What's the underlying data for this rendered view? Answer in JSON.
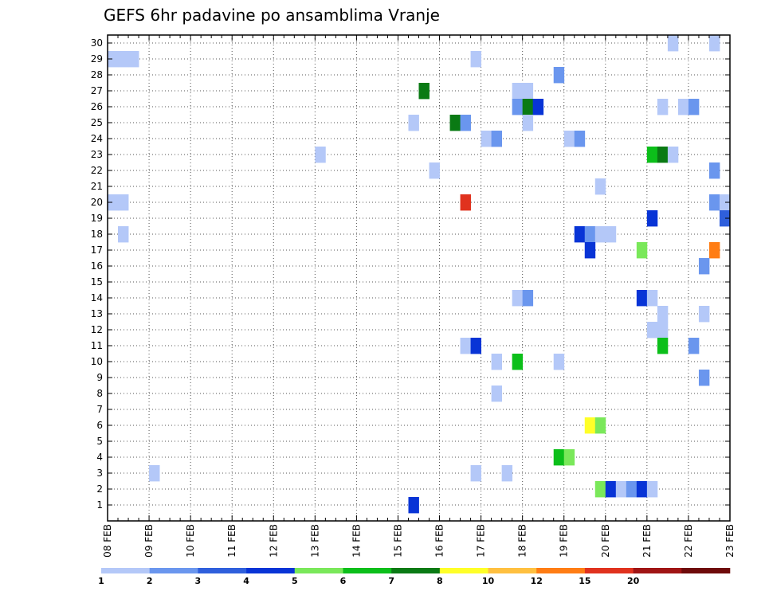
{
  "chart_data": {
    "type": "heatmap",
    "title": "GEFS 6hr padavine po ansamblima Vranje",
    "x_labels": [
      "08 FEB",
      "09 FEB",
      "10 FEB",
      "11 FEB",
      "12 FEB",
      "13 FEB",
      "14 FEB",
      "15 FEB",
      "16 FEB",
      "17 FEB",
      "18 FEB",
      "19 FEB",
      "20 FEB",
      "21 FEB",
      "22 FEB",
      "23 FEB"
    ],
    "x_steps_per_day": 4,
    "y_labels": [
      "1",
      "2",
      "3",
      "4",
      "5",
      "6",
      "7",
      "8",
      "9",
      "10",
      "11",
      "12",
      "13",
      "14",
      "15",
      "16",
      "17",
      "18",
      "19",
      "20",
      "21",
      "22",
      "23",
      "24",
      "25",
      "26",
      "27",
      "28",
      "29",
      "30"
    ],
    "grid": true,
    "legend_position": "bottom",
    "legend": {
      "labels": [
        "1",
        "2",
        "3",
        "4",
        "5",
        "6",
        "7",
        "8",
        "10",
        "12",
        "15",
        "20"
      ],
      "colors": [
        "#b4c8f8",
        "#6a96ee",
        "#2f5fdc",
        "#0834d6",
        "#7ae85a",
        "#0cbf1a",
        "#0a7a14",
        "#ffff28",
        "#ffc040",
        "#ff7d14",
        "#e0321e",
        "#a01414",
        "#6e0a0a"
      ]
    },
    "cells": [
      {
        "member": 30,
        "step": 55,
        "level": 0
      },
      {
        "member": 30,
        "step": 59,
        "level": 0
      },
      {
        "member": 29,
        "step": 1,
        "level": 0
      },
      {
        "member": 29,
        "step": 2,
        "level": 0
      },
      {
        "member": 29,
        "step": 3,
        "level": 0
      },
      {
        "member": 29,
        "step": 36,
        "level": 0
      },
      {
        "member": 28,
        "step": 44,
        "level": 1
      },
      {
        "member": 27,
        "step": 31,
        "level": 6
      },
      {
        "member": 27,
        "step": 40,
        "level": 0
      },
      {
        "member": 27,
        "step": 41,
        "level": 0
      },
      {
        "member": 26,
        "step": 40,
        "level": 1
      },
      {
        "member": 26,
        "step": 41,
        "level": 6
      },
      {
        "member": 26,
        "step": 42,
        "level": 3
      },
      {
        "member": 26,
        "step": 54,
        "level": 0
      },
      {
        "member": 26,
        "step": 56,
        "level": 0
      },
      {
        "member": 26,
        "step": 57,
        "level": 1
      },
      {
        "member": 25,
        "step": 30,
        "level": 0
      },
      {
        "member": 25,
        "step": 34,
        "level": 6
      },
      {
        "member": 25,
        "step": 35,
        "level": 1
      },
      {
        "member": 25,
        "step": 41,
        "level": 0
      },
      {
        "member": 24,
        "step": 37,
        "level": 0
      },
      {
        "member": 24,
        "step": 38,
        "level": 1
      },
      {
        "member": 24,
        "step": 45,
        "level": 0
      },
      {
        "member": 24,
        "step": 46,
        "level": 1
      },
      {
        "member": 23,
        "step": 21,
        "level": 0
      },
      {
        "member": 23,
        "step": 53,
        "level": 5
      },
      {
        "member": 23,
        "step": 54,
        "level": 6
      },
      {
        "member": 23,
        "step": 55,
        "level": 0
      },
      {
        "member": 22,
        "step": 32,
        "level": 0
      },
      {
        "member": 22,
        "step": 59,
        "level": 1
      },
      {
        "member": 21,
        "step": 48,
        "level": 0
      },
      {
        "member": 20,
        "step": 1,
        "level": 0
      },
      {
        "member": 20,
        "step": 2,
        "level": 0
      },
      {
        "member": 20,
        "step": 35,
        "level": 10
      },
      {
        "member": 20,
        "step": 59,
        "level": 1
      },
      {
        "member": 20,
        "step": 60,
        "level": 0
      },
      {
        "member": 19,
        "step": 53,
        "level": 3
      },
      {
        "member": 19,
        "step": 60,
        "level": 2
      },
      {
        "member": 18,
        "step": 2,
        "level": 0
      },
      {
        "member": 18,
        "step": 46,
        "level": 3
      },
      {
        "member": 18,
        "step": 47,
        "level": 1
      },
      {
        "member": 18,
        "step": 48,
        "level": 0
      },
      {
        "member": 18,
        "step": 49,
        "level": 0
      },
      {
        "member": 17,
        "step": 47,
        "level": 3
      },
      {
        "member": 17,
        "step": 52,
        "level": 4
      },
      {
        "member": 17,
        "step": 59,
        "level": 9
      },
      {
        "member": 16,
        "step": 58,
        "level": 1
      },
      {
        "member": 14,
        "step": 40,
        "level": 0
      },
      {
        "member": 14,
        "step": 41,
        "level": 1
      },
      {
        "member": 14,
        "step": 52,
        "level": 3
      },
      {
        "member": 14,
        "step": 53,
        "level": 0
      },
      {
        "member": 13,
        "step": 54,
        "level": 0
      },
      {
        "member": 13,
        "step": 58,
        "level": 0
      },
      {
        "member": 12,
        "step": 53,
        "level": 0
      },
      {
        "member": 12,
        "step": 54,
        "level": 0
      },
      {
        "member": 11,
        "step": 35,
        "level": 0
      },
      {
        "member": 11,
        "step": 36,
        "level": 3
      },
      {
        "member": 11,
        "step": 54,
        "level": 5
      },
      {
        "member": 11,
        "step": 57,
        "level": 1
      },
      {
        "member": 10,
        "step": 38,
        "level": 0
      },
      {
        "member": 10,
        "step": 40,
        "level": 5
      },
      {
        "member": 10,
        "step": 44,
        "level": 0
      },
      {
        "member": 9,
        "step": 58,
        "level": 1
      },
      {
        "member": 8,
        "step": 38,
        "level": 0
      },
      {
        "member": 6,
        "step": 47,
        "level": 7
      },
      {
        "member": 6,
        "step": 48,
        "level": 4
      },
      {
        "member": 4,
        "step": 44,
        "level": 5
      },
      {
        "member": 4,
        "step": 45,
        "level": 4
      },
      {
        "member": 3,
        "step": 5,
        "level": 0
      },
      {
        "member": 3,
        "step": 36,
        "level": 0
      },
      {
        "member": 3,
        "step": 39,
        "level": 0
      },
      {
        "member": 2,
        "step": 48,
        "level": 4
      },
      {
        "member": 2,
        "step": 49,
        "level": 3
      },
      {
        "member": 2,
        "step": 50,
        "level": 0
      },
      {
        "member": 2,
        "step": 51,
        "level": 1
      },
      {
        "member": 2,
        "step": 52,
        "level": 3
      },
      {
        "member": 2,
        "step": 53,
        "level": 0
      },
      {
        "member": 1,
        "step": 30,
        "level": 3
      }
    ]
  }
}
